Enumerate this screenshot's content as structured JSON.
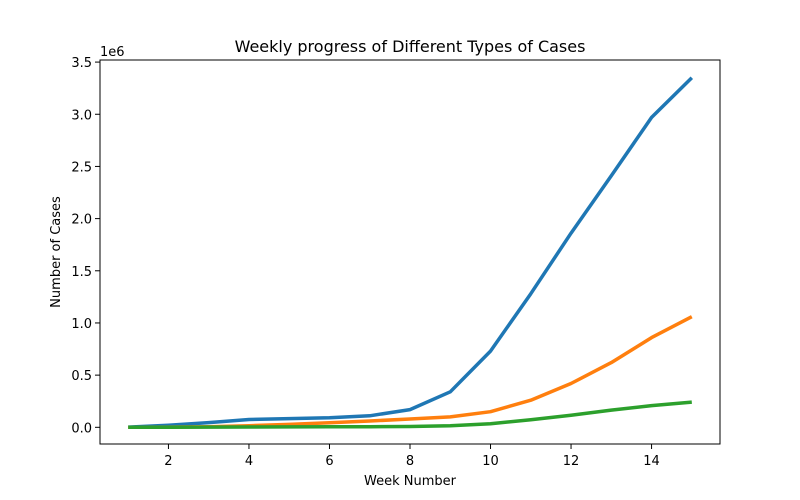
{
  "chart_data": {
    "type": "line",
    "title": "Weekly progress of Different Types of Cases",
    "xlabel": "Week Number",
    "ylabel": "Number of Cases",
    "y_offset_label": "1e6",
    "xlim": [
      0.3,
      15.7
    ],
    "ylim": [
      -160000,
      3520000
    ],
    "x_ticks": [
      2,
      4,
      6,
      8,
      10,
      12,
      14
    ],
    "y_ticks": [
      0,
      500000,
      1000000,
      1500000,
      2000000,
      2500000,
      3000000,
      3500000
    ],
    "y_tick_labels": [
      "0.0",
      "0.5",
      "1.0",
      "1.5",
      "2.0",
      "2.5",
      "3.0",
      "3.5"
    ],
    "grid": false,
    "legend": "none",
    "x": [
      1,
      2,
      3,
      4,
      5,
      6,
      7,
      8,
      9,
      10,
      11,
      12,
      13,
      14,
      15
    ],
    "series": [
      {
        "color": "#1f77b4",
        "values": [
          2000,
          20000,
          45000,
          75000,
          83000,
          92000,
          110000,
          170000,
          340000,
          730000,
          1280000,
          1860000,
          2410000,
          2970000,
          3350000
        ]
      },
      {
        "color": "#ff7f0e",
        "values": [
          500,
          2000,
          5000,
          15000,
          28000,
          43000,
          60000,
          80000,
          100000,
          150000,
          260000,
          420000,
          620000,
          860000,
          1060000
        ]
      },
      {
        "color": "#2ca02c",
        "values": [
          0,
          1000,
          2000,
          3000,
          4000,
          5000,
          6000,
          8000,
          15000,
          35000,
          72000,
          115000,
          165000,
          208000,
          242000
        ]
      }
    ]
  }
}
